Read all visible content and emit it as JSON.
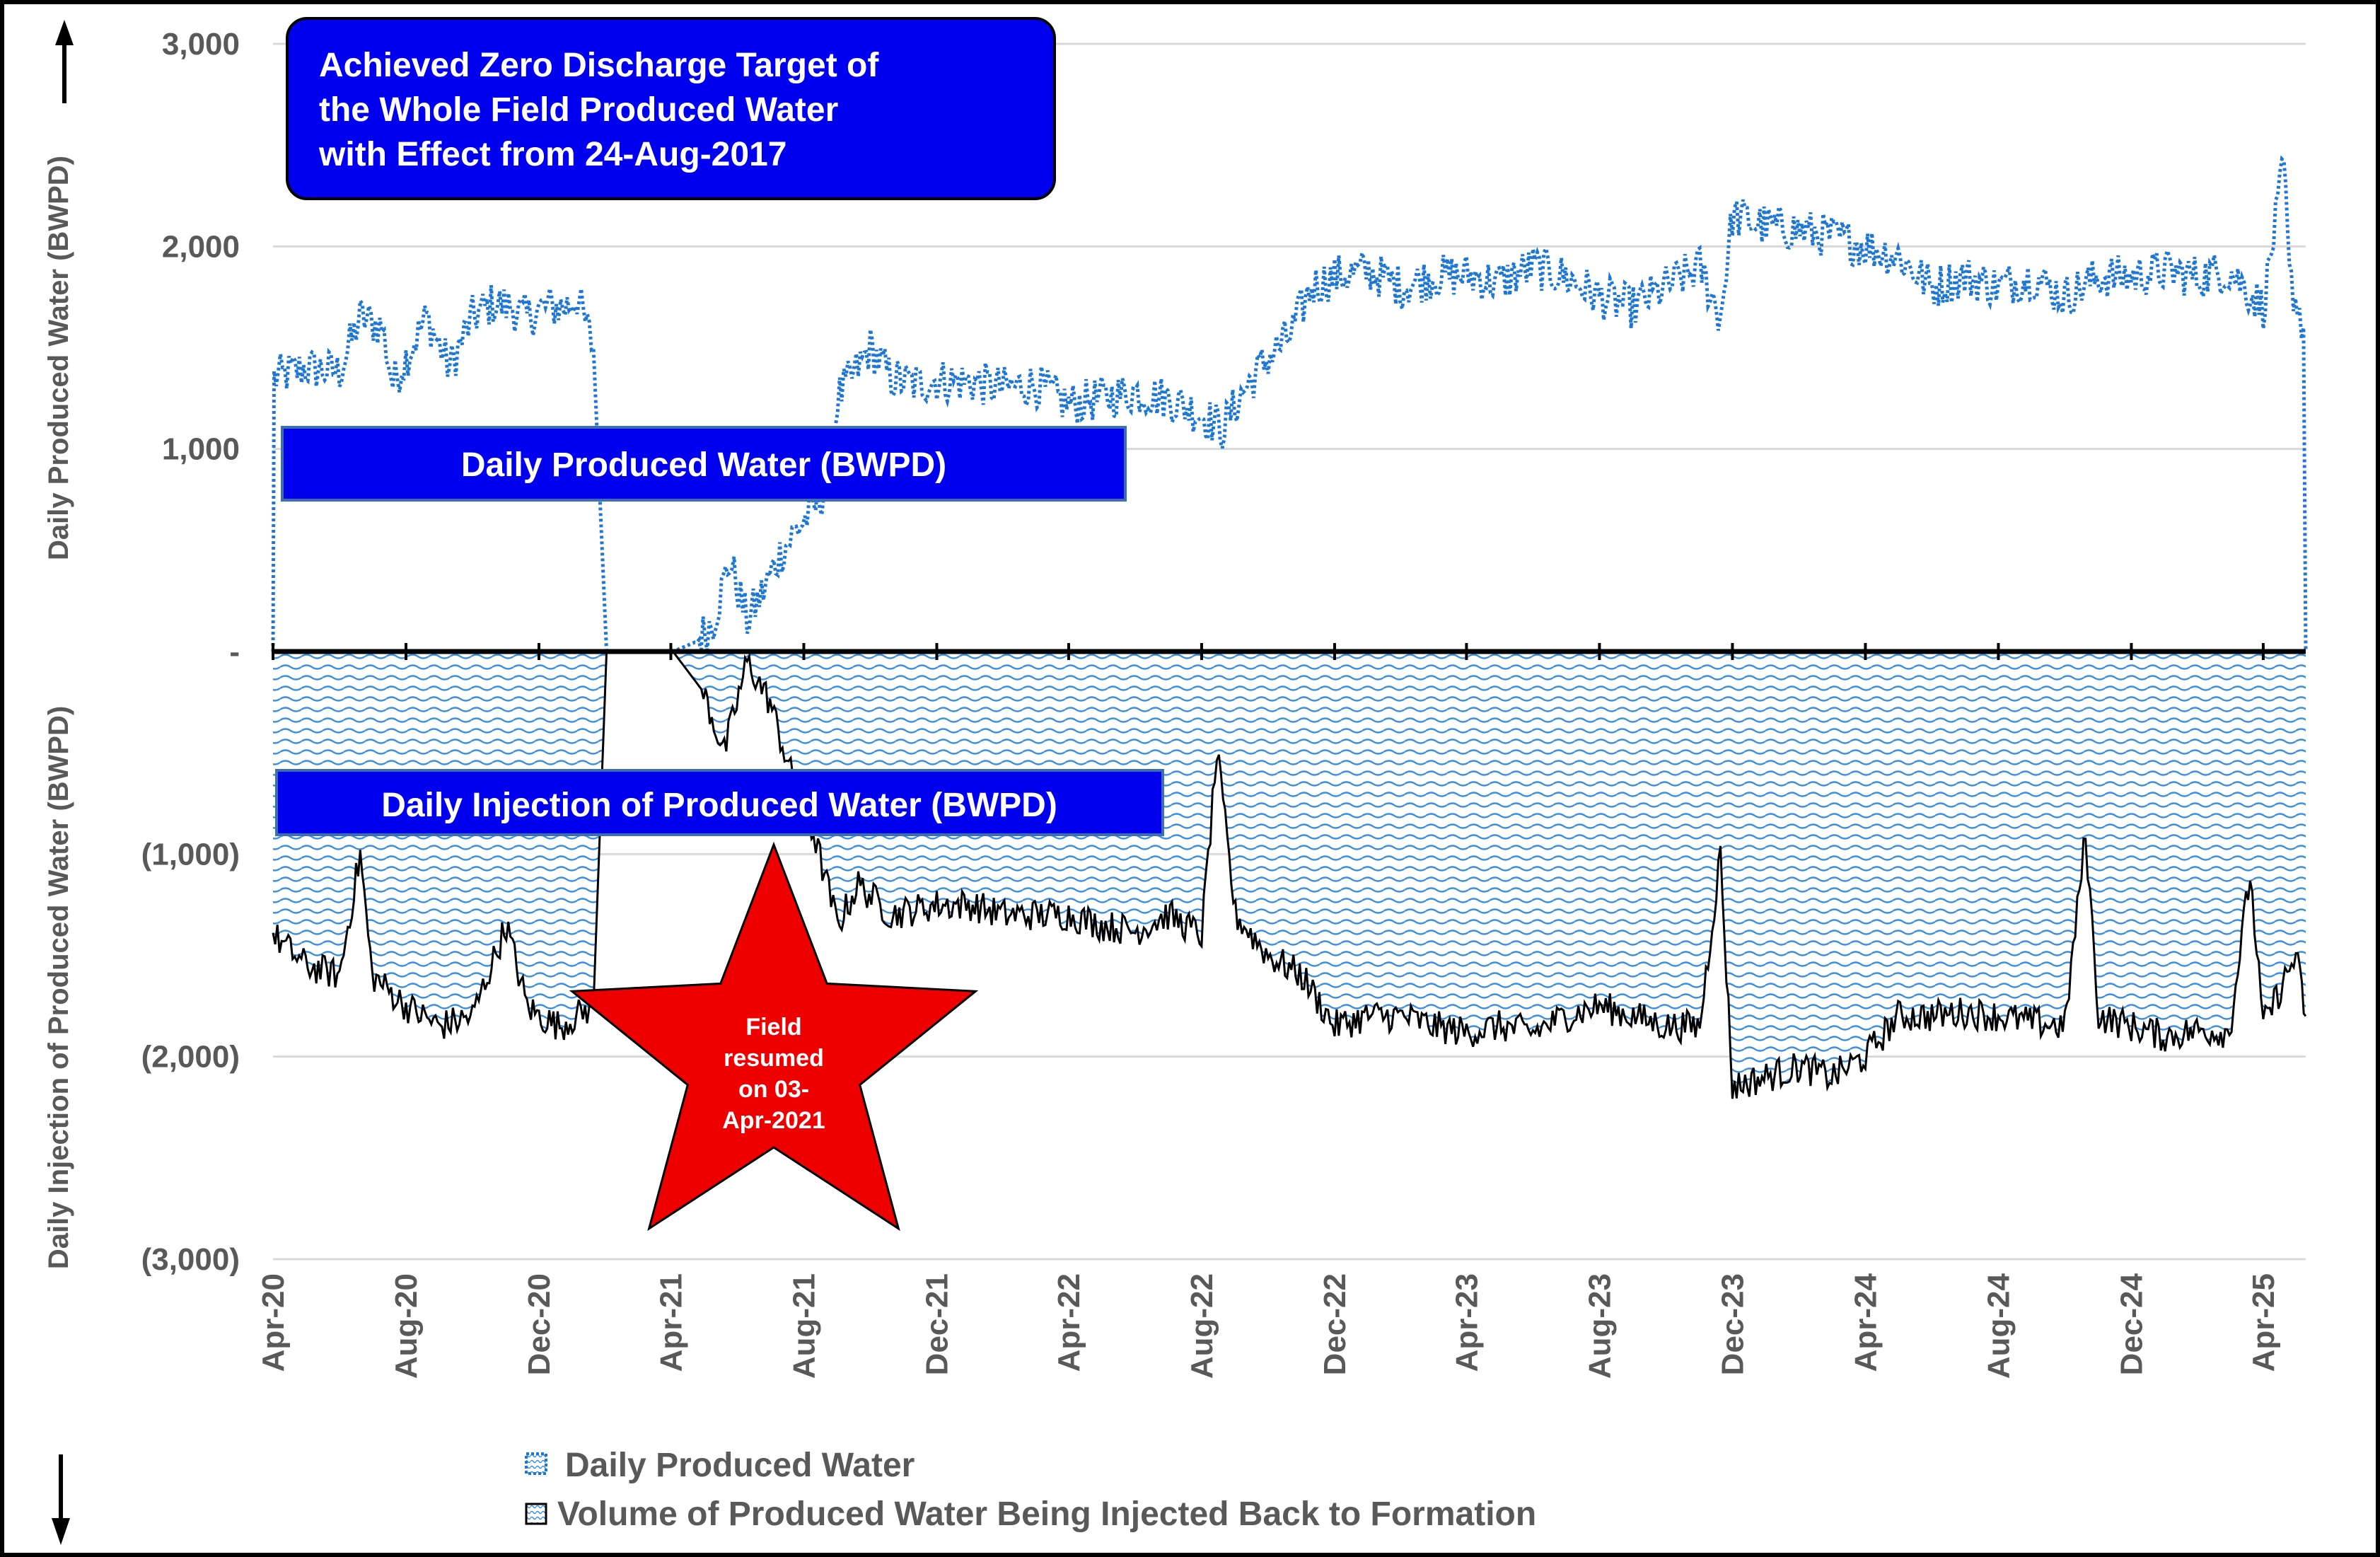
{
  "chart_data": {
    "type": "area",
    "title": "",
    "y_axis": {
      "label_top": "Daily Produced Water (BWPD)",
      "label_bottom": "Daily Injection of Produced Water (BWPD)",
      "ylim": [
        -3000,
        3000
      ],
      "ticks": [
        {
          "value": 3000,
          "label": "3,000"
        },
        {
          "value": 2000,
          "label": "2,000"
        },
        {
          "value": 1000,
          "label": "1,000"
        },
        {
          "value": 0,
          "label": "-"
        },
        {
          "value": -1000,
          "label": "(1,000)"
        },
        {
          "value": -2000,
          "label": "(2,000)"
        },
        {
          "value": -3000,
          "label": "(3,000)"
        }
      ]
    },
    "x_axis": {
      "type": "date",
      "range": [
        "2020-04-01",
        "2025-05-10"
      ],
      "ticks": [
        {
          "date": "2020-04-01",
          "label": "Apr-20"
        },
        {
          "date": "2020-08-01",
          "label": "Aug-20"
        },
        {
          "date": "2020-12-01",
          "label": "Dec-20"
        },
        {
          "date": "2021-04-01",
          "label": "Apr-21"
        },
        {
          "date": "2021-08-01",
          "label": "Aug-21"
        },
        {
          "date": "2021-12-01",
          "label": "Dec-21"
        },
        {
          "date": "2022-04-01",
          "label": "Apr-22"
        },
        {
          "date": "2022-08-01",
          "label": "Aug-22"
        },
        {
          "date": "2022-12-01",
          "label": "Dec-22"
        },
        {
          "date": "2023-04-01",
          "label": "Apr-23"
        },
        {
          "date": "2023-08-01",
          "label": "Aug-23"
        },
        {
          "date": "2023-12-01",
          "label": "Dec-23"
        },
        {
          "date": "2024-04-01",
          "label": "Apr-24"
        },
        {
          "date": "2024-08-01",
          "label": "Aug-24"
        },
        {
          "date": "2024-12-01",
          "label": "Dec-24"
        },
        {
          "date": "2025-04-01",
          "label": "Apr-25"
        }
      ]
    },
    "grid": "horizontal",
    "legend_position": "bottom",
    "series": [
      {
        "name": "Daily Produced Water",
        "style": "dotted-line",
        "color": "#1f77d4",
        "points": [
          [
            "2020-04-01",
            0
          ],
          [
            "2020-04-02",
            1350
          ],
          [
            "2020-05-01",
            1400
          ],
          [
            "2020-06-01",
            1380
          ],
          [
            "2020-06-20",
            1650
          ],
          [
            "2020-07-10",
            1600
          ],
          [
            "2020-07-20",
            1320
          ],
          [
            "2020-08-01",
            1450
          ],
          [
            "2020-08-20",
            1650
          ],
          [
            "2020-09-10",
            1400
          ],
          [
            "2020-10-01",
            1650
          ],
          [
            "2020-10-20",
            1720
          ],
          [
            "2020-11-05",
            1700
          ],
          [
            "2020-11-20",
            1650
          ],
          [
            "2020-12-05",
            1700
          ],
          [
            "2020-12-25",
            1700
          ],
          [
            "2021-01-05",
            1750
          ],
          [
            "2021-01-20",
            1500
          ],
          [
            "2021-02-01",
            0
          ],
          [
            "2021-04-03",
            0
          ],
          [
            "2021-04-25",
            50
          ],
          [
            "2021-05-10",
            150
          ],
          [
            "2021-05-25",
            450
          ],
          [
            "2021-06-10",
            150
          ],
          [
            "2021-06-25",
            300
          ],
          [
            "2021-07-10",
            480
          ],
          [
            "2021-07-25",
            600
          ],
          [
            "2021-08-10",
            700
          ],
          [
            "2021-08-25",
            850
          ],
          [
            "2021-09-01",
            1250
          ],
          [
            "2021-09-20",
            1400
          ],
          [
            "2021-10-01",
            1500
          ],
          [
            "2021-10-20",
            1350
          ],
          [
            "2021-11-10",
            1320
          ],
          [
            "2021-12-01",
            1340
          ],
          [
            "2022-01-01",
            1330
          ],
          [
            "2022-02-01",
            1300
          ],
          [
            "2022-03-01",
            1320
          ],
          [
            "2022-04-01",
            1220
          ],
          [
            "2022-05-01",
            1250
          ],
          [
            "2022-06-01",
            1280
          ],
          [
            "2022-07-01",
            1250
          ],
          [
            "2022-08-01",
            1170
          ],
          [
            "2022-08-20",
            1100
          ],
          [
            "2022-09-10",
            1300
          ],
          [
            "2022-10-01",
            1450
          ],
          [
            "2022-10-20",
            1550
          ],
          [
            "2022-11-10",
            1800
          ],
          [
            "2022-12-01",
            1850
          ],
          [
            "2023-01-01",
            1880
          ],
          [
            "2023-02-01",
            1800
          ],
          [
            "2023-03-01",
            1850
          ],
          [
            "2023-04-01",
            1860
          ],
          [
            "2023-05-01",
            1820
          ],
          [
            "2023-06-01",
            1900
          ],
          [
            "2023-07-01",
            1850
          ],
          [
            "2023-08-01",
            1750
          ],
          [
            "2023-09-01",
            1700
          ],
          [
            "2023-10-01",
            1800
          ],
          [
            "2023-11-01",
            1900
          ],
          [
            "2023-11-20",
            1650
          ],
          [
            "2023-12-01",
            2150
          ],
          [
            "2024-01-01",
            2100
          ],
          [
            "2024-02-01",
            2080
          ],
          [
            "2024-03-01",
            2050
          ],
          [
            "2024-04-01",
            2000
          ],
          [
            "2024-05-01",
            1950
          ],
          [
            "2024-06-01",
            1800
          ],
          [
            "2024-07-01",
            1850
          ],
          [
            "2024-08-01",
            1800
          ],
          [
            "2024-09-01",
            1850
          ],
          [
            "2024-10-01",
            1750
          ],
          [
            "2024-11-01",
            1850
          ],
          [
            "2024-12-01",
            1850
          ],
          [
            "2025-01-01",
            1880
          ],
          [
            "2025-02-01",
            1850
          ],
          [
            "2025-03-01",
            1880
          ],
          [
            "2025-04-01",
            1700
          ],
          [
            "2025-04-20",
            2400
          ],
          [
            "2025-04-25",
            1850
          ],
          [
            "2025-05-08",
            1600
          ],
          [
            "2025-05-10",
            0
          ]
        ]
      },
      {
        "name": "Volume of Produced Water Being Injected Back to Formation",
        "style": "patterned-area",
        "color": "#000000",
        "points": [
          [
            "2020-04-01",
            -1400
          ],
          [
            "2020-05-01",
            -1550
          ],
          [
            "2020-06-01",
            -1600
          ],
          [
            "2020-06-20",
            -1000
          ],
          [
            "2020-07-01",
            -1600
          ],
          [
            "2020-08-01",
            -1750
          ],
          [
            "2020-09-01",
            -1850
          ],
          [
            "2020-10-01",
            -1800
          ],
          [
            "2020-11-01",
            -1350
          ],
          [
            "2020-11-20",
            -1750
          ],
          [
            "2020-12-01",
            -1800
          ],
          [
            "2020-12-20",
            -1850
          ],
          [
            "2021-01-20",
            -1750
          ],
          [
            "2021-02-01",
            0
          ],
          [
            "2021-04-03",
            0
          ],
          [
            "2021-05-01",
            -200
          ],
          [
            "2021-05-20",
            -500
          ],
          [
            "2021-06-10",
            -50
          ],
          [
            "2021-07-01",
            -250
          ],
          [
            "2021-07-20",
            -600
          ],
          [
            "2021-08-10",
            -900
          ],
          [
            "2021-09-01",
            -1350
          ],
          [
            "2021-09-20",
            -1150
          ],
          [
            "2021-10-20",
            -1300
          ],
          [
            "2021-12-01",
            -1250
          ],
          [
            "2022-01-01",
            -1250
          ],
          [
            "2022-02-01",
            -1300
          ],
          [
            "2022-03-01",
            -1300
          ],
          [
            "2022-04-01",
            -1300
          ],
          [
            "2022-05-01",
            -1350
          ],
          [
            "2022-06-01",
            -1380
          ],
          [
            "2022-07-01",
            -1300
          ],
          [
            "2022-08-01",
            -1400
          ],
          [
            "2022-08-15",
            -500
          ],
          [
            "2022-09-01",
            -1300
          ],
          [
            "2022-10-01",
            -1500
          ],
          [
            "2022-11-01",
            -1600
          ],
          [
            "2022-12-01",
            -1850
          ],
          [
            "2023-01-01",
            -1800
          ],
          [
            "2023-02-01",
            -1800
          ],
          [
            "2023-03-01",
            -1850
          ],
          [
            "2023-04-01",
            -1880
          ],
          [
            "2023-05-01",
            -1850
          ],
          [
            "2023-06-01",
            -1880
          ],
          [
            "2023-07-01",
            -1800
          ],
          [
            "2023-08-01",
            -1750
          ],
          [
            "2023-09-01",
            -1800
          ],
          [
            "2023-10-01",
            -1850
          ],
          [
            "2023-11-01",
            -1850
          ],
          [
            "2023-11-20",
            -1000
          ],
          [
            "2023-12-01",
            -2150
          ],
          [
            "2024-01-01",
            -2100
          ],
          [
            "2024-02-01",
            -2050
          ],
          [
            "2024-03-01",
            -2100
          ],
          [
            "2024-04-01",
            -2000
          ],
          [
            "2024-05-01",
            -1800
          ],
          [
            "2024-06-01",
            -1800
          ],
          [
            "2024-07-01",
            -1780
          ],
          [
            "2024-08-01",
            -1800
          ],
          [
            "2024-09-01",
            -1830
          ],
          [
            "2024-10-01",
            -1850
          ],
          [
            "2024-10-20",
            -900
          ],
          [
            "2024-11-01",
            -1800
          ],
          [
            "2024-12-01",
            -1850
          ],
          [
            "2025-01-01",
            -1900
          ],
          [
            "2025-02-01",
            -1870
          ],
          [
            "2025-03-01",
            -1880
          ],
          [
            "2025-03-20",
            -1100
          ],
          [
            "2025-04-01",
            -1850
          ],
          [
            "2025-05-01",
            -1500
          ],
          [
            "2025-05-10",
            -1800
          ]
        ]
      }
    ],
    "annotations": {
      "top_box": "Achieved Zero Discharge Target of the Whole Field Produced Water with Effect from 24-Aug-2017",
      "produced_label": "Daily Produced Water (BWPD)",
      "injection_label": "Daily Injection of Produced Water (BWPD)",
      "star_text": "Field resumed on 03-Apr-2021"
    }
  },
  "colors": {
    "produced": "#1f77d4",
    "injection_line": "#000000",
    "box_fill": "#0000ee",
    "star_fill": "#ee0000",
    "axis_text": "#595959"
  }
}
